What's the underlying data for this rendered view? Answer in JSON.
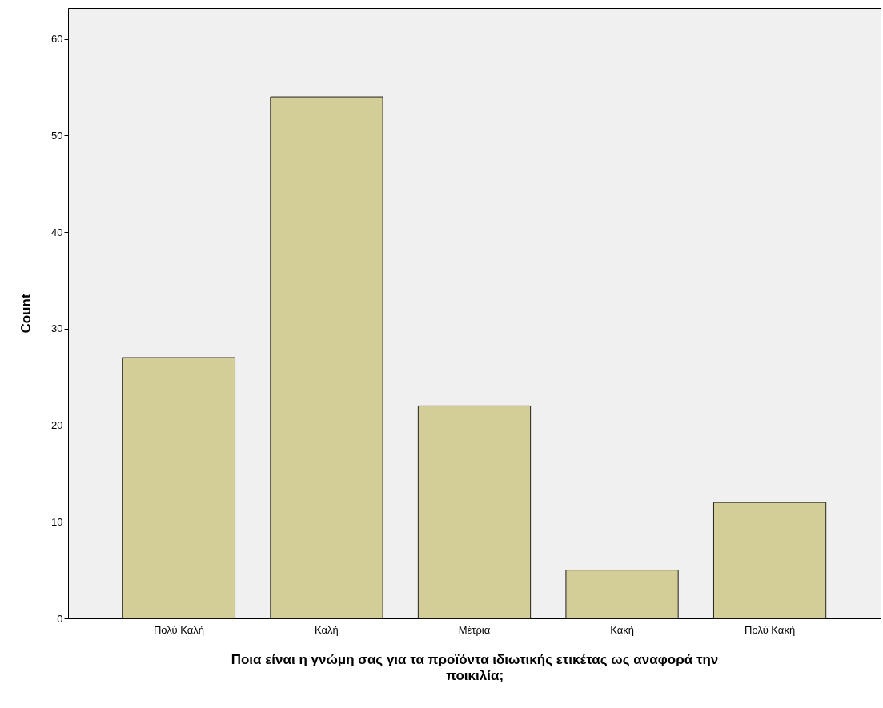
{
  "chart_data": {
    "type": "bar",
    "xlabel": "Ποια είναι η γνώμη σας για τα προϊόντα ιδιωτικής ετικέτας ως αναφορά την ποικιλία;",
    "ylabel": "Count",
    "categories": [
      "Πολύ Καλή",
      "Καλή",
      "Μέτρια",
      "Κακή",
      "Πολύ Κακή"
    ],
    "values": [
      27,
      54,
      22,
      5,
      12
    ],
    "color": "#d3ce97",
    "ylim": [
      0,
      63.2
    ],
    "yticks": [
      0,
      10,
      20,
      30,
      40,
      50,
      60
    ],
    "grid": false
  }
}
